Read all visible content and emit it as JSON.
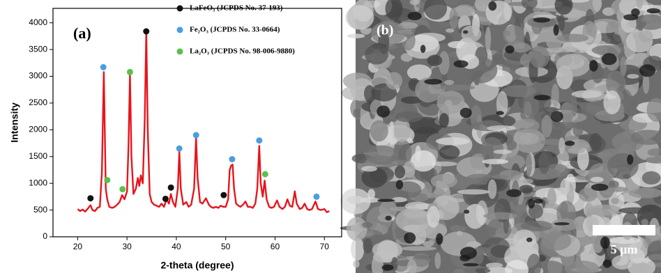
{
  "chart_data": {
    "type": "line",
    "panel_label": "(a)",
    "x_label": "2-theta (degree)",
    "y_label": "Intensity",
    "color": "#e8141b",
    "x": [
      20,
      20.5,
      21,
      21.5,
      22,
      22.6,
      23,
      23.5,
      24,
      24.5,
      24.9,
      25.3,
      25.7,
      26,
      26.4,
      27,
      27.5,
      28,
      28.5,
      29,
      29.5,
      30,
      30.3,
      30.6,
      30.9,
      31.3,
      31.8,
      32.2,
      32.5,
      32.8,
      33.2,
      33.6,
      33.9,
      34.2,
      34.6,
      35,
      35.5,
      36,
      36.5,
      37,
      37.5,
      38,
      38.5,
      38.9,
      39.3,
      39.8,
      40.3,
      40.6,
      40.9,
      41.4,
      42,
      42.5,
      43,
      43.6,
      44,
      44.3,
      44.8,
      45.3,
      46,
      46.6,
      47,
      47.5,
      48,
      48.5,
      49,
      49.5,
      50,
      50.5,
      50.8,
      51.1,
      51.4,
      51.7,
      52.1,
      52.6,
      53,
      53.5,
      54,
      54.5,
      55,
      55.5,
      56,
      56.4,
      56.8,
      57.1,
      57.5,
      57.9,
      58.3,
      58.8,
      59.3,
      59.8,
      60.4,
      60.9,
      61.5,
      62,
      62.5,
      63,
      63.5,
      64,
      64.4,
      65,
      65.5,
      66,
      66.5,
      67,
      67.5,
      68.2,
      68.7,
      69.3,
      70,
      70.5,
      71
    ],
    "values": [
      520,
      480,
      510,
      470,
      520,
      590,
      500,
      480,
      540,
      560,
      1200,
      3080,
      900,
      700,
      560,
      540,
      560,
      600,
      650,
      780,
      700,
      850,
      1700,
      3040,
      1500,
      800,
      900,
      1100,
      950,
      1150,
      1000,
      2200,
      3850,
      2000,
      800,
      650,
      600,
      580,
      560,
      620,
      560,
      700,
      620,
      800,
      650,
      560,
      900,
      1590,
      900,
      600,
      650,
      560,
      600,
      900,
      1850,
      1100,
      650,
      620,
      720,
      600,
      560,
      540,
      560,
      540,
      580,
      560,
      560,
      700,
      1250,
      1330,
      1350,
      900,
      620,
      580,
      560,
      600,
      660,
      560,
      560,
      540,
      620,
      900,
      1700,
      1000,
      750,
      1050,
      700,
      560,
      540,
      560,
      680,
      560,
      520,
      560,
      700,
      580,
      560,
      850,
      620,
      520,
      540,
      620,
      520,
      500,
      520,
      660,
      520,
      500,
      520,
      460,
      480
    ],
    "series": [
      {
        "name": "LaFeO₃ (JCPDS No. 37-193)",
        "color": "#111111",
        "x": [
          22.6,
          33.9,
          37.8,
          38.9,
          49.6
        ],
        "values": [
          720,
          3840,
          710,
          920,
          780
        ]
      },
      {
        "name": "Fe₂O₃ (JCPDS No. 33-0664)",
        "color": "#4a9ee0",
        "x": [
          25.2,
          40.6,
          44,
          51.3,
          56.8,
          68.4
        ],
        "values": [
          3170,
          1650,
          1900,
          1450,
          1800,
          750
        ]
      },
      {
        "name": "La₂O₃ (JCPDS No. 98-006-9880)",
        "color": "#5cbf4f",
        "x": [
          26,
          29.1,
          30.6,
          58
        ],
        "values": [
          1060,
          890,
          3080,
          1170
        ]
      }
    ],
    "xlim": [
      15,
      73.5
    ],
    "ylim": [
      0,
      4270
    ],
    "xticks": [
      20,
      30,
      40,
      50,
      60,
      70
    ],
    "yticks": [
      0,
      500,
      1000,
      1500,
      2000,
      2500,
      3000,
      3500,
      4000
    ]
  },
  "image": {
    "panel_label": "(b)",
    "scale_bar": "5 μm"
  }
}
